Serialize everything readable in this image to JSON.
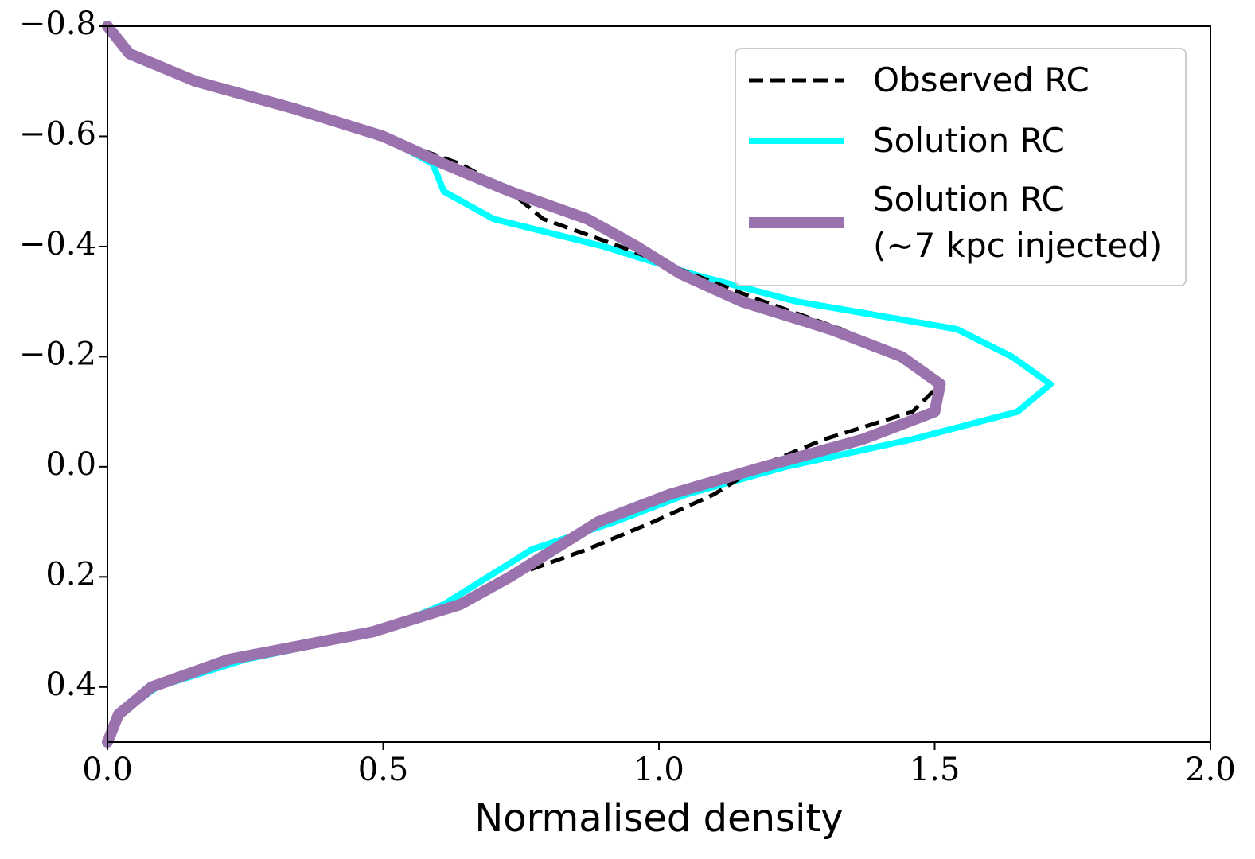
{
  "chart_data": {
    "type": "line",
    "orientation": "horizontal",
    "xlabel": "Normalised density",
    "y": [
      -0.8,
      -0.75,
      -0.7,
      -0.65,
      -0.6,
      -0.55,
      -0.5,
      -0.45,
      -0.4,
      -0.35,
      -0.3,
      -0.25,
      -0.2,
      -0.15,
      -0.1,
      -0.05,
      0.0,
      0.05,
      0.1,
      0.15,
      0.2,
      0.25,
      0.3,
      0.35,
      0.4,
      0.45,
      0.5
    ],
    "series": [
      {
        "name": "Observed RC",
        "color": "#000000",
        "dash": true,
        "values": [
          null,
          null,
          null,
          null,
          0.5,
          0.64,
          0.73,
          0.79,
          0.93,
          1.06,
          1.19,
          1.33,
          1.44,
          1.51,
          1.46,
          1.3,
          1.18,
          1.1,
          0.99,
          0.87,
          0.73,
          0.63,
          0.48,
          null,
          null,
          null,
          null
        ]
      },
      {
        "name": "Solution RC",
        "color": "#00ffff",
        "values": [
          0.0,
          0.04,
          0.16,
          0.34,
          0.5,
          0.59,
          0.61,
          0.7,
          0.9,
          1.06,
          1.25,
          1.54,
          1.64,
          1.71,
          1.65,
          1.46,
          1.23,
          1.05,
          0.92,
          0.77,
          0.69,
          0.61,
          0.49,
          0.25,
          0.09,
          0.02,
          0.0
        ]
      },
      {
        "name": "Solution RC\n(∼7 kpc injected)",
        "color": "#9a72ae",
        "values": [
          0.0,
          0.04,
          0.16,
          0.34,
          0.5,
          0.61,
          0.73,
          0.87,
          0.96,
          1.04,
          1.15,
          1.31,
          1.44,
          1.51,
          1.5,
          1.37,
          1.19,
          1.02,
          0.89,
          0.81,
          0.73,
          0.64,
          0.48,
          0.22,
          0.08,
          0.02,
          0.0
        ]
      }
    ],
    "xlim": [
      0,
      2
    ],
    "xticks": [
      {
        "value": 0,
        "label": "0.0"
      },
      0.5,
      {
        "value": 1,
        "label": "1.0"
      },
      1.5,
      {
        "value": 2,
        "label": "2.0"
      }
    ],
    "ylim": [
      0.5,
      -0.8
    ],
    "yticks": [
      {
        "value": -0.8,
        "label": "−0.8"
      },
      {
        "value": -0.6,
        "label": "−0.6"
      },
      {
        "value": -0.4,
        "label": "−0.4"
      },
      {
        "value": -0.2,
        "label": "−0.2"
      },
      {
        "value": 0,
        "label": "0.0"
      },
      0.2,
      0.4
    ],
    "legend": "upper right"
  }
}
